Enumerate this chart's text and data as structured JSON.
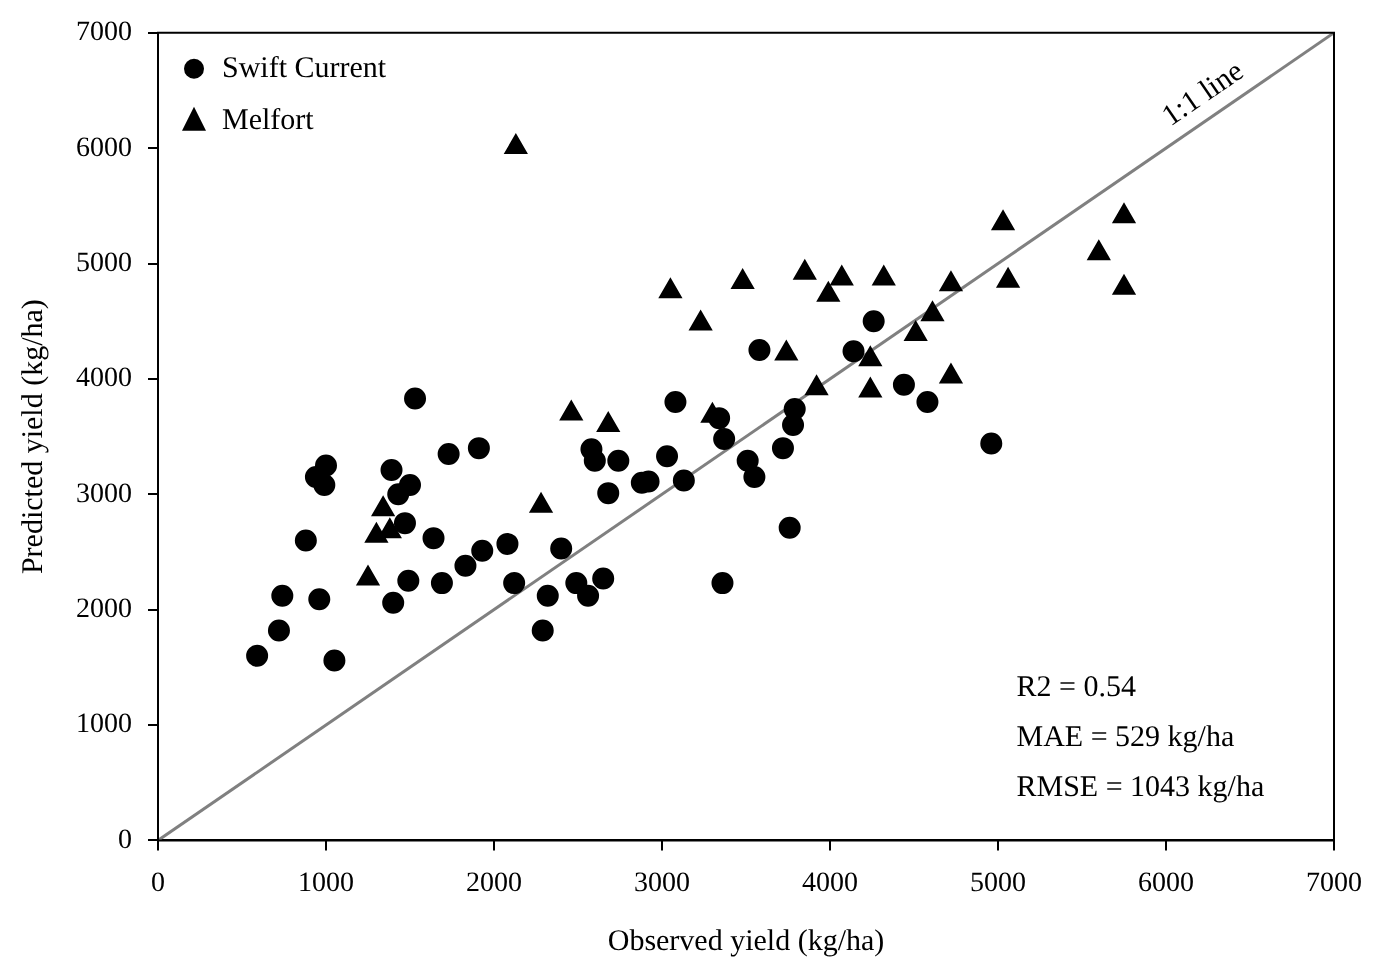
{
  "chart_data": {
    "type": "scatter",
    "xlabel": "Observed yield (kg/ha)",
    "ylabel": "Predicted yield (kg/ha)",
    "xlim": [
      0,
      7000
    ],
    "ylim": [
      0,
      7000
    ],
    "xticks": [
      0,
      1000,
      2000,
      3000,
      4000,
      5000,
      6000,
      7000
    ],
    "yticks": [
      0,
      1000,
      2000,
      3000,
      4000,
      5000,
      6000,
      7000
    ],
    "grid": false,
    "legend": "top left",
    "series": [
      {
        "name": "Swift Current",
        "color": "#000000",
        "marker": "circle",
        "x": [
          590,
          720,
          740,
          880,
          940,
          960,
          990,
          1000,
          1050,
          1390,
          1400,
          1430,
          1470,
          1490,
          1500,
          1530,
          1640,
          1690,
          1730,
          1830,
          1910,
          1930,
          2080,
          2120,
          2290,
          2320,
          2400,
          2490,
          2560,
          2580,
          2600,
          2650,
          2680,
          2740,
          2880,
          2920,
          3030,
          3080,
          3130,
          3340,
          3360,
          3370,
          3510,
          3550,
          3580,
          3720,
          3760,
          3780,
          3790,
          4140,
          4260,
          4440,
          4580,
          4960
        ],
        "values": [
          1600,
          1820,
          2120,
          2600,
          3150,
          2090,
          3080,
          3250,
          1560,
          3210,
          2060,
          3000,
          2750,
          2250,
          3080,
          3830,
          2620,
          2230,
          3350,
          2380,
          3400,
          2510,
          2570,
          2230,
          1820,
          2120,
          2530,
          2230,
          2120,
          3390,
          3290,
          2270,
          3010,
          3290,
          3100,
          3110,
          3330,
          3800,
          3120,
          3660,
          2230,
          3480,
          3290,
          3150,
          4250,
          3400,
          2710,
          3600,
          3740,
          4240,
          4500,
          3950,
          3800,
          3440
        ]
      },
      {
        "name": "Melfort",
        "color": "#000000",
        "marker": "triangle",
        "x": [
          1250,
          1300,
          1340,
          1380,
          2130,
          2280,
          2460,
          2680,
          3050,
          3230,
          3300,
          3480,
          3740,
          3850,
          3920,
          3990,
          4070,
          4240,
          4240,
          4320,
          4510,
          4610,
          4720,
          4720,
          5030,
          5060,
          5600,
          5750,
          5750
        ],
        "values": [
          2270,
          2640,
          2870,
          2680,
          6010,
          2900,
          3700,
          3600,
          4760,
          4480,
          3680,
          4840,
          4220,
          4920,
          3920,
          4730,
          4870,
          4170,
          3900,
          4870,
          4390,
          4560,
          4020,
          4820,
          5350,
          4850,
          5090,
          5410,
          4790
        ]
      },
      {
        "name": "1:1 line",
        "type": "line",
        "color": "#808080",
        "marker": "none",
        "x": [
          0,
          7000
        ],
        "values": [
          0,
          7000
        ]
      }
    ],
    "annotations": [
      "R2 = 0.54",
      "MAE = 529 kg/ha",
      "RMSE = 1043 kg/ha"
    ]
  }
}
